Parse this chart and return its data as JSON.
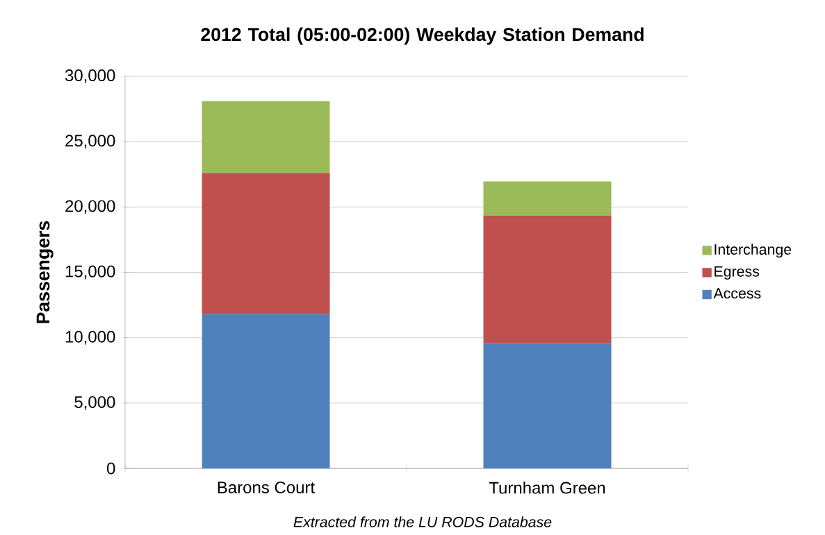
{
  "chart_data": {
    "type": "bar",
    "title": "2012 Total (05:00-02:00) Weekday Station Demand",
    "ylabel": "Passengers",
    "categories": [
      "Barons Court",
      "Turnham Green"
    ],
    "series": [
      {
        "name": "Access",
        "color": "#4f81bd",
        "values": [
          11800,
          9600
        ]
      },
      {
        "name": "Egress",
        "color": "#c0504d",
        "values": [
          10800,
          9750
        ]
      },
      {
        "name": "Interchange",
        "color": "#9bbb59",
        "values": [
          5500,
          2600
        ]
      }
    ],
    "stacked": true,
    "ylim": [
      0,
      30000
    ],
    "yticks": [
      0,
      {
        "value": 5000,
        "label": "5,000"
      },
      {
        "value": 10000,
        "label": "10,000"
      },
      {
        "value": 15000,
        "label": "15,000"
      },
      {
        "value": 20000,
        "label": "20,000"
      },
      {
        "value": 25000,
        "label": "25,000"
      },
      {
        "value": 30000,
        "label": "30,000"
      }
    ],
    "grid": "y",
    "legend": "right",
    "annotations": [
      "Extracted from the LU RODS Database"
    ]
  }
}
